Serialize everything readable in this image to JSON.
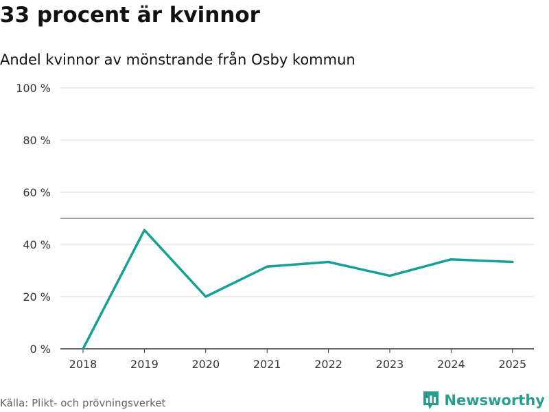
{
  "title": "33 procent är kvinnor",
  "subtitle": "Andel kvinnor av mönstrande från Osby kommun",
  "source": "Källa: Plikt- och prövningsverket",
  "brand": {
    "name": "Newsworthy",
    "icon": "newsworthy-logo-icon",
    "color": "#2a9d8f"
  },
  "colors": {
    "line": "#169f94",
    "grid": "#dddddd",
    "reference": "#666666",
    "axis": "#333333"
  },
  "chart_data": {
    "type": "line",
    "title": "33 procent är kvinnor",
    "subtitle": "Andel kvinnor av mönstrande från Osby kommun",
    "x": [
      "2018",
      "2019",
      "2020",
      "2021",
      "2022",
      "2023",
      "2024",
      "2025"
    ],
    "series": [
      {
        "values": [
          0,
          45.5,
          20,
          31.5,
          33.3,
          28,
          34.3,
          33.3
        ]
      }
    ],
    "ylim": [
      0,
      100
    ],
    "yticks": [
      0,
      20,
      40,
      60,
      80,
      100
    ],
    "ytick_labels": [
      "0 %",
      "20 %",
      "40 %",
      "60 %",
      "80 %",
      "100 %"
    ],
    "reference_line": 50,
    "grid": true,
    "legend": "none"
  }
}
